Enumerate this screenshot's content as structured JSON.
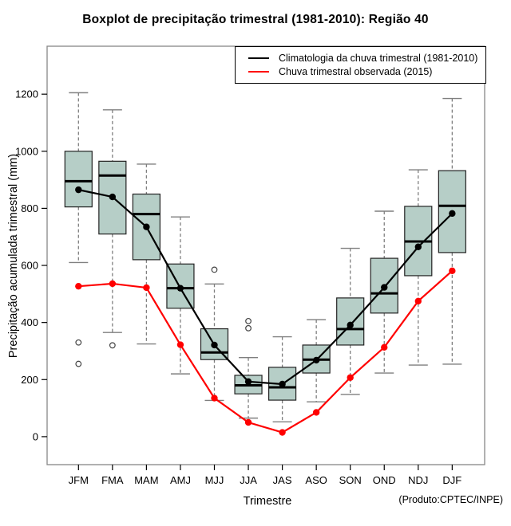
{
  "title": "Boxplot de precipitação trimestral (1981-2010): Região 40",
  "footer_note": "(Produto:CPTEC/INPE)",
  "chart_data": {
    "type": "boxplot",
    "title": "Boxplot de precipitação trimestral (1981-2010): Região 40",
    "xlabel": "Trimestre",
    "ylabel": "Precipitação acumulada trimestral (mm)",
    "categories": [
      "JFM",
      "FMA",
      "MAM",
      "AMJ",
      "MJJ",
      "JJA",
      "JAS",
      "ASO",
      "SON",
      "OND",
      "NDJ",
      "DJF"
    ],
    "yticks": [
      0,
      200,
      400,
      600,
      800,
      1000,
      1200
    ],
    "ylim": [
      -98,
      1368
    ],
    "grid": false,
    "legend_position": "top-right",
    "boxes": [
      {
        "category": "JFM",
        "whisker_low": 610,
        "q1": 805,
        "median": 895,
        "q3": 1000,
        "whisker_high": 1205,
        "outliers": [
          330,
          255
        ]
      },
      {
        "category": "FMA",
        "whisker_low": 365,
        "q1": 710,
        "median": 915,
        "q3": 965,
        "whisker_high": 1145,
        "outliers": [
          320
        ]
      },
      {
        "category": "MAM",
        "whisker_low": 325,
        "q1": 620,
        "median": 780,
        "q3": 850,
        "whisker_high": 955,
        "outliers": []
      },
      {
        "category": "AMJ",
        "whisker_low": 220,
        "q1": 450,
        "median": 520,
        "q3": 605,
        "whisker_high": 770,
        "outliers": []
      },
      {
        "category": "MJJ",
        "whisker_low": 127,
        "q1": 270,
        "median": 295,
        "q3": 378,
        "whisker_high": 535,
        "outliers": [
          585
        ]
      },
      {
        "category": "JJA",
        "whisker_low": 65,
        "q1": 150,
        "median": 180,
        "q3": 215,
        "whisker_high": 277,
        "outliers": [
          405,
          380
        ]
      },
      {
        "category": "JAS",
        "whisker_low": 52,
        "q1": 128,
        "median": 173,
        "q3": 243,
        "whisker_high": 350,
        "outliers": []
      },
      {
        "category": "ASO",
        "whisker_low": 122,
        "q1": 223,
        "median": 270,
        "q3": 321,
        "whisker_high": 410,
        "outliers": []
      },
      {
        "category": "SON",
        "whisker_low": 148,
        "q1": 321,
        "median": 377,
        "q3": 486,
        "whisker_high": 660,
        "outliers": []
      },
      {
        "category": "OND",
        "whisker_low": 223,
        "q1": 433,
        "median": 502,
        "q3": 625,
        "whisker_high": 790,
        "outliers": []
      },
      {
        "category": "NDJ",
        "whisker_low": 251,
        "q1": 564,
        "median": 684,
        "q3": 807,
        "whisker_high": 935,
        "outliers": []
      },
      {
        "category": "DJF",
        "whisker_low": 254,
        "q1": 645,
        "median": 809,
        "q3": 932,
        "whisker_high": 1185,
        "outliers": []
      }
    ],
    "series": [
      {
        "name": "Climatologia da chuva trimestral (1981-2010)",
        "color": "#000000",
        "values": [
          865,
          840,
          735,
          520,
          321,
          193,
          184,
          268,
          391,
          523,
          665,
          782
        ]
      },
      {
        "name": "Chuva trimestral observada (2015)",
        "color": "#ff0000",
        "values": [
          527,
          536,
          522,
          322,
          135,
          50,
          15,
          85,
          207,
          313,
          475,
          581
        ]
      }
    ],
    "colors": {
      "box_fill": "#b6cec7",
      "box_border": "#222222",
      "whisker": "#7f7f7f",
      "outlier": "#444444",
      "frame": "#878787",
      "tick": "#000000"
    }
  }
}
